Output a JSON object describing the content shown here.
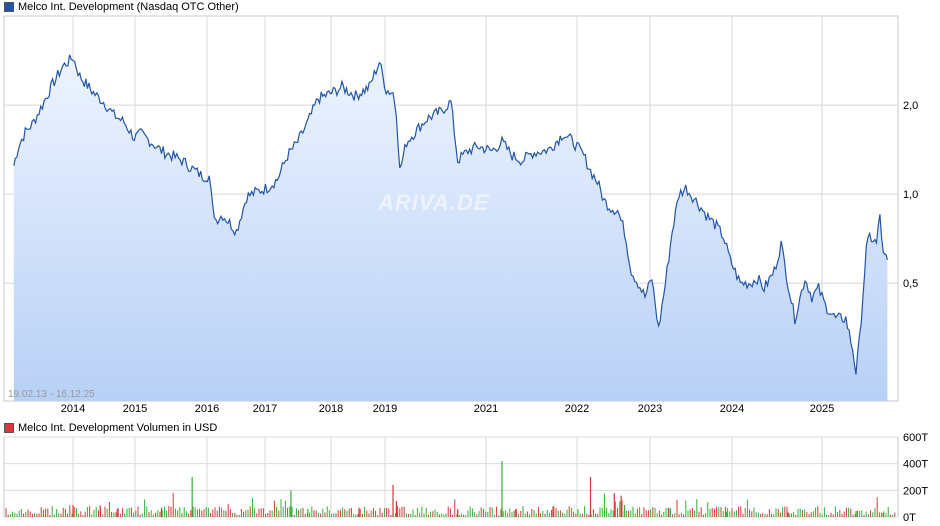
{
  "chart_data": [
    {
      "type": "area",
      "title": "Melco Int. Development (Nasdaq OTC Other)",
      "date_range": "19.02.13 - 16.12.25",
      "x_ticks": [
        "2014",
        "2015",
        "2016",
        "2017",
        "2018",
        "2019",
        "2021",
        "2022",
        "2023",
        "2024",
        "2025"
      ],
      "y_ticks": [
        "0,5",
        "1,0",
        "2,0"
      ],
      "y_scale": "log",
      "ylim": [
        0.2,
        4.0
      ],
      "grid": true,
      "colors": {
        "line": "#2255aa",
        "fill_top": "#eef4ff",
        "fill_bottom": "#b8d0f6",
        "grid": "#d8d8d8"
      },
      "series": [
        {
          "values": [
            [
              2013.13,
              1.25
            ],
            [
              2013.2,
              1.45
            ],
            [
              2013.3,
              1.62
            ],
            [
              2013.4,
              1.72
            ],
            [
              2013.55,
              2.0
            ],
            [
              2013.7,
              2.35
            ],
            [
              2013.85,
              2.7
            ],
            [
              2014.0,
              2.9
            ],
            [
              2014.1,
              2.5
            ],
            [
              2014.3,
              2.2
            ],
            [
              2014.45,
              2.05
            ],
            [
              2014.6,
              1.85
            ],
            [
              2014.75,
              1.75
            ],
            [
              2014.9,
              1.55
            ],
            [
              2015.0,
              1.6
            ],
            [
              2015.15,
              1.5
            ],
            [
              2015.3,
              1.4
            ],
            [
              2015.45,
              1.35
            ],
            [
              2015.6,
              1.3
            ],
            [
              2015.75,
              1.22
            ],
            [
              2015.9,
              1.15
            ],
            [
              2016.0,
              1.15
            ],
            [
              2016.05,
              0.9
            ],
            [
              2016.1,
              0.82
            ],
            [
              2016.2,
              0.85
            ],
            [
              2016.3,
              0.8
            ],
            [
              2016.4,
              0.75
            ],
            [
              2016.55,
              0.98
            ],
            [
              2016.7,
              1.02
            ],
            [
              2016.85,
              1.05
            ],
            [
              2017.0,
              1.12
            ],
            [
              2017.15,
              1.35
            ],
            [
              2017.3,
              1.5
            ],
            [
              2017.45,
              1.75
            ],
            [
              2017.6,
              2.1
            ],
            [
              2017.8,
              2.2
            ],
            [
              2017.95,
              2.3
            ],
            [
              2018.15,
              2.15
            ],
            [
              2018.35,
              2.3
            ],
            [
              2018.5,
              2.8
            ],
            [
              2018.6,
              2.25
            ],
            [
              2018.7,
              2.2
            ],
            [
              2018.75,
              1.9
            ],
            [
              2018.8,
              1.2
            ],
            [
              2018.9,
              1.5
            ],
            [
              2019.05,
              1.65
            ],
            [
              2019.2,
              1.8
            ],
            [
              2019.4,
              1.9
            ],
            [
              2019.55,
              2.05
            ],
            [
              2019.65,
              1.3
            ],
            [
              2019.8,
              1.4
            ],
            [
              2019.95,
              1.45
            ],
            [
              2020.15,
              1.4
            ],
            [
              2020.3,
              1.5
            ],
            [
              2020.45,
              1.35
            ],
            [
              2020.6,
              1.3
            ],
            [
              2020.75,
              1.38
            ],
            [
              2020.9,
              1.4
            ],
            [
              2021.0,
              1.42
            ],
            [
              2021.2,
              1.6
            ],
            [
              2021.35,
              1.5
            ],
            [
              2021.5,
              1.35
            ],
            [
              2021.6,
              1.2
            ],
            [
              2021.7,
              1.1
            ],
            [
              2021.8,
              0.95
            ],
            [
              2021.9,
              0.9
            ],
            [
              2022.0,
              0.88
            ],
            [
              2022.1,
              0.75
            ],
            [
              2022.2,
              0.55
            ],
            [
              2022.3,
              0.5
            ],
            [
              2022.4,
              0.45
            ],
            [
              2022.5,
              0.52
            ],
            [
              2022.6,
              0.35
            ],
            [
              2022.7,
              0.5
            ],
            [
              2022.8,
              0.75
            ],
            [
              2022.9,
              1.0
            ],
            [
              2023.0,
              1.05
            ],
            [
              2023.15,
              0.95
            ],
            [
              2023.3,
              0.85
            ],
            [
              2023.45,
              0.78
            ],
            [
              2023.55,
              0.72
            ],
            [
              2023.65,
              0.6
            ],
            [
              2023.8,
              0.5
            ],
            [
              2023.95,
              0.5
            ],
            [
              2024.05,
              0.52
            ],
            [
              2024.15,
              0.48
            ],
            [
              2024.3,
              0.55
            ],
            [
              2024.4,
              0.68
            ],
            [
              2024.5,
              0.5
            ],
            [
              2024.6,
              0.38
            ],
            [
              2024.75,
              0.52
            ],
            [
              2024.85,
              0.45
            ],
            [
              2024.95,
              0.48
            ],
            [
              2025.05,
              0.42
            ],
            [
              2025.2,
              0.38
            ],
            [
              2025.35,
              0.38
            ],
            [
              2025.45,
              0.3
            ],
            [
              2025.5,
              0.25
            ],
            [
              2025.55,
              0.32
            ],
            [
              2025.65,
              0.65
            ],
            [
              2025.7,
              0.72
            ],
            [
              2025.8,
              0.68
            ],
            [
              2025.85,
              0.85
            ],
            [
              2025.9,
              0.62
            ],
            [
              2025.96,
              0.6
            ]
          ]
        }
      ]
    },
    {
      "type": "bar",
      "title": "Melco Int. Development Volumen in USD",
      "y_ticks": [
        "0T",
        "200T",
        "400T",
        "600T"
      ],
      "ylim": [
        0,
        600
      ],
      "grid": true,
      "colors": {
        "up": "#2fb52f",
        "down": "#d43a3a"
      },
      "spikes": [
        [
          2014.0,
          90,
          "down"
        ],
        [
          2014.4,
          85,
          "down"
        ],
        [
          2014.65,
          60,
          "down"
        ],
        [
          2015.3,
          70,
          "down"
        ],
        [
          2015.75,
          300,
          "up"
        ],
        [
          2017.2,
          200,
          "up"
        ],
        [
          2017.45,
          60,
          "up"
        ],
        [
          2018.2,
          70,
          "down"
        ],
        [
          2018.7,
          240,
          "down"
        ],
        [
          2018.75,
          120,
          "down"
        ],
        [
          2019.65,
          60,
          "down"
        ],
        [
          2020.3,
          420,
          "up"
        ],
        [
          2020.5,
          60,
          "up"
        ],
        [
          2021.05,
          80,
          "down"
        ],
        [
          2021.6,
          300,
          "down"
        ],
        [
          2021.95,
          180,
          "down"
        ],
        [
          2022.05,
          160,
          "down"
        ],
        [
          2022.1,
          90,
          "up"
        ],
        [
          2022.75,
          70,
          "down"
        ],
        [
          2023.6,
          40,
          "up"
        ],
        [
          2024.5,
          35,
          "down"
        ],
        [
          2025.5,
          45,
          "up"
        ],
        [
          2025.9,
          30,
          "down"
        ]
      ]
    }
  ]
}
